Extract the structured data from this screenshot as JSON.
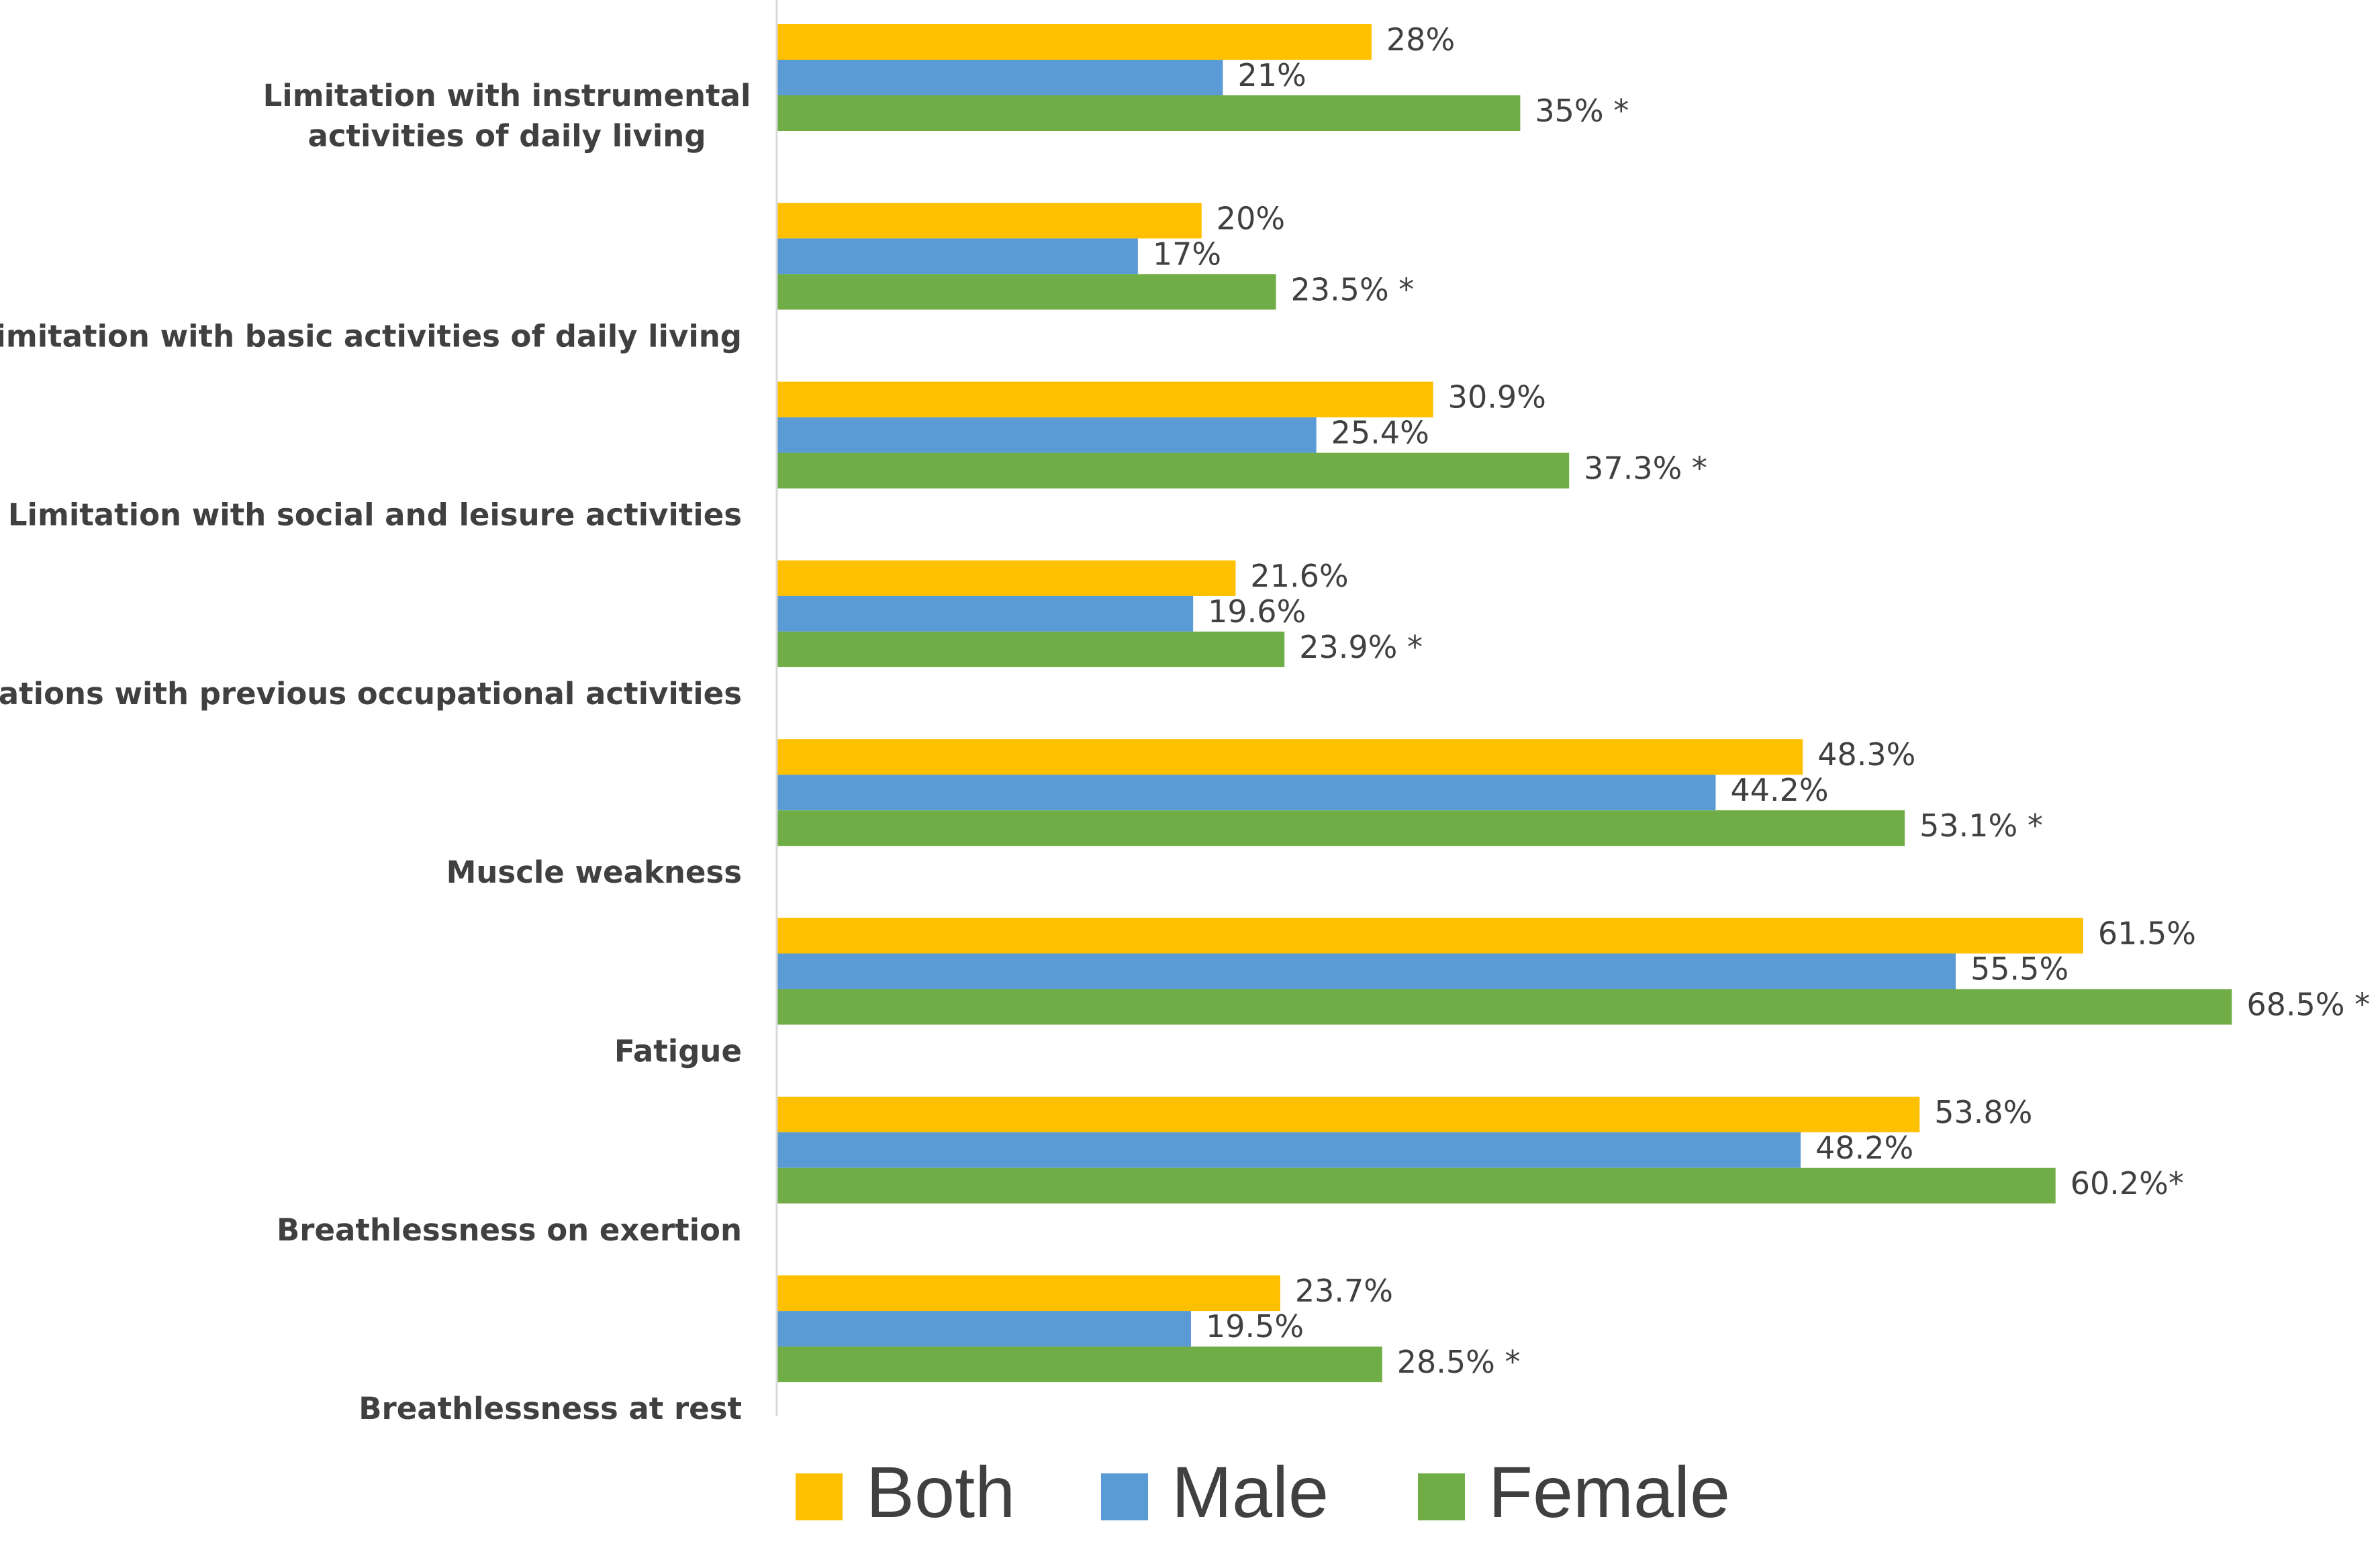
{
  "chart_data": {
    "type": "bar",
    "orientation": "horizontal",
    "categories": [
      [
        "Limitation with instrumental",
        "activities of daily living"
      ],
      [
        "Limitation with basic activities of daily living"
      ],
      [
        "Limitation with social and leisure activities"
      ],
      [
        "Limitations with previous occupational activities"
      ],
      [
        "Muscle weakness"
      ],
      [
        "Fatigue"
      ],
      [
        "Breathlessness on exertion"
      ],
      [
        "Breathlessness at rest"
      ]
    ],
    "series": [
      {
        "name": "Both",
        "color": "#FFC000",
        "values": [
          28,
          20,
          30.9,
          21.6,
          48.3,
          61.5,
          53.8,
          23.7
        ],
        "labels": [
          "28%",
          "20%",
          "30.9%",
          "21.6%",
          "48.3%",
          "61.5%",
          "53.8%",
          "23.7%"
        ]
      },
      {
        "name": "Male",
        "color": "#5B9BD5",
        "values": [
          21,
          17,
          25.4,
          19.6,
          44.2,
          55.5,
          48.2,
          19.5
        ],
        "labels": [
          "21%",
          "17%",
          "25.4%",
          "19.6%",
          "44.2%",
          "55.5%",
          "48.2%",
          "19.5%"
        ]
      },
      {
        "name": "Female",
        "color": "#70AD47",
        "values": [
          35,
          23.5,
          37.3,
          23.9,
          53.1,
          68.5,
          60.2,
          28.5
        ],
        "labels": [
          "35% *",
          "23.5% *",
          "37.3% *",
          "23.9% *",
          "53.1% *",
          "68.5% *",
          "60.2%*",
          "28.5% *"
        ]
      }
    ],
    "title": "",
    "xlabel": "",
    "ylabel": "",
    "xlim": [
      0,
      70
    ],
    "legend": {
      "position": "bottom"
    },
    "grid": false,
    "axis_color": "#D9D9D9",
    "text_color": "#404040"
  }
}
